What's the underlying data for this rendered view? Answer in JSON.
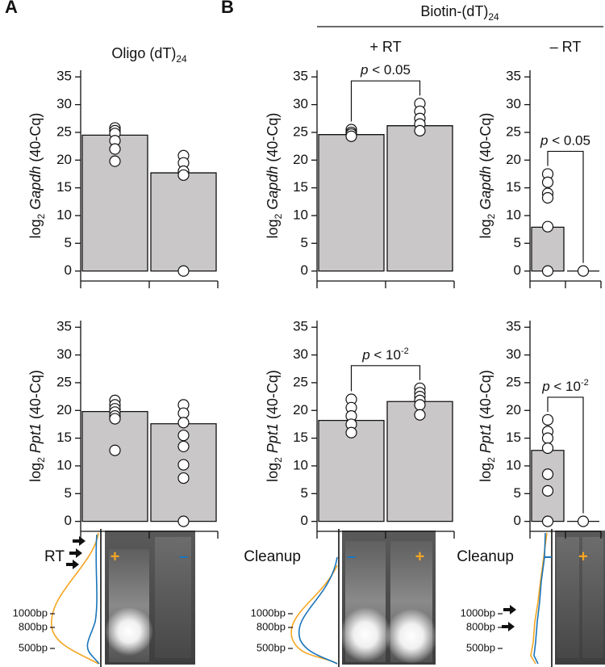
{
  "panel_labels": [
    "A",
    "B"
  ],
  "group_title": {
    "text": "Biotin-(dT)",
    "sub": "24"
  },
  "chart_data": [
    {
      "type": "bar",
      "title": {
        "text": "Oligo (dT)",
        "sub": "24"
      },
      "ylabel": {
        "prefix": "log",
        "sub": "2",
        "gene": "Gapdh",
        "suffix": " (40-Cq)"
      },
      "categories": [
        null,
        null
      ],
      "values": [
        24.5,
        17.7
      ],
      "points": [
        [
          25.8,
          25.3,
          24.8,
          23.5,
          22,
          19.8
        ],
        [
          20.8,
          19.5,
          18,
          17.3,
          0
        ]
      ],
      "color": "#c9c7c7",
      "ylim": [
        -1.8,
        36.2
      ],
      "yticks": [
        0,
        5,
        10,
        15,
        20,
        25,
        30,
        35
      ]
    },
    {
      "type": "bar",
      "title": {
        "text": "+ RT"
      },
      "ylabel": {
        "prefix": "log",
        "sub": "2",
        "gene": "Gapdh",
        "suffix": " (40-Cq)"
      },
      "categories": [
        null,
        null
      ],
      "values": [
        24.6,
        26.2
      ],
      "points": [
        [
          25.5,
          25,
          24.7,
          24.3
        ],
        [
          30.2,
          28.8,
          27.5,
          26.5,
          25.3
        ]
      ],
      "comparison": {
        "italic": "p",
        "text": " < 0.05"
      },
      "color": "#c9c7c7",
      "ylim": [
        -1.8,
        36.2
      ],
      "yticks": [
        0,
        5,
        10,
        15,
        20,
        25,
        30,
        35
      ]
    },
    {
      "type": "bar",
      "title": {
        "text": "– RT"
      },
      "ylabel": {
        "prefix": "log",
        "sub": "2",
        "gene": "Gapdh",
        "suffix": " (40-Cq)"
      },
      "categories": [
        null,
        null
      ],
      "values": [
        7.9,
        0
      ],
      "points": [
        [
          17.5,
          16,
          14,
          13.2,
          8,
          0
        ],
        [
          0
        ]
      ],
      "comparison": {
        "italic": "p",
        "text": " < 0.05"
      },
      "color": "#c9c7c7",
      "ylim": [
        -1.8,
        36.2
      ],
      "yticks": [
        0,
        5,
        10,
        15,
        20,
        25,
        30,
        35
      ]
    },
    {
      "type": "bar",
      "ylabel": {
        "prefix": "log",
        "sub": "2",
        "gene": "Ppt1",
        "suffix": " (40-Cq)"
      },
      "xlabel": "RT",
      "categories": [
        "+",
        "–"
      ],
      "category_colors": [
        "#f5a623",
        "#1b75bb"
      ],
      "values": [
        19.8,
        17.6
      ],
      "points": [
        [
          21.8,
          21,
          20.3,
          19.7,
          19,
          18.5,
          12.8
        ],
        [
          21,
          19.5,
          17.8,
          15.5,
          13.5,
          10.2,
          7.8,
          0
        ]
      ],
      "color": "#c9c7c7",
      "ylim": [
        -1.8,
        36.2
      ],
      "yticks": [
        0,
        5,
        10,
        15,
        20,
        25,
        30,
        35
      ]
    },
    {
      "type": "bar",
      "ylabel": {
        "prefix": "log",
        "sub": "2",
        "gene": "Ppt1",
        "suffix": " (40-Cq)"
      },
      "xlabel": "Cleanup",
      "categories": [
        "–",
        "+"
      ],
      "category_colors": [
        "#1b75bb",
        "#f5a623"
      ],
      "values": [
        18.2,
        21.6
      ],
      "points": [
        [
          22,
          20.5,
          19,
          17.5,
          16
        ],
        [
          24,
          23.2,
          22.5,
          21.8,
          21,
          19.2
        ]
      ],
      "comparison": {
        "italic": "p",
        "text": " < 10",
        "sup": "-2"
      },
      "color": "#c9c7c7",
      "ylim": [
        -1.8,
        36.2
      ],
      "yticks": [
        0,
        5,
        10,
        15,
        20,
        25,
        30,
        35
      ]
    },
    {
      "type": "bar",
      "ylabel": {
        "prefix": "log",
        "sub": "2",
        "gene": "Ppt1",
        "suffix": " (40-Cq)"
      },
      "xlabel": "Cleanup",
      "categories": [
        "–",
        "+"
      ],
      "category_colors": [
        "#1b75bb",
        "#f5a623"
      ],
      "values": [
        12.8,
        0
      ],
      "points": [
        [
          18.3,
          16.2,
          15,
          13.2,
          8.5,
          5.5,
          0
        ],
        [
          0
        ]
      ],
      "comparison": {
        "italic": "p",
        "text": " < 10",
        "sup": "-2"
      },
      "color": "#c9c7c7",
      "ylim": [
        -1.8,
        36.2
      ],
      "yticks": [
        0,
        5,
        10,
        15,
        20,
        25,
        30,
        35
      ]
    }
  ],
  "gels": [
    {
      "markers": [
        "1000bp",
        "800bp",
        "500bp"
      ]
    },
    {
      "markers": [
        "1000bp",
        "800bp",
        "500bp"
      ]
    },
    {
      "markers": [
        "1000bp",
        "800bp",
        "500bp"
      ]
    }
  ]
}
